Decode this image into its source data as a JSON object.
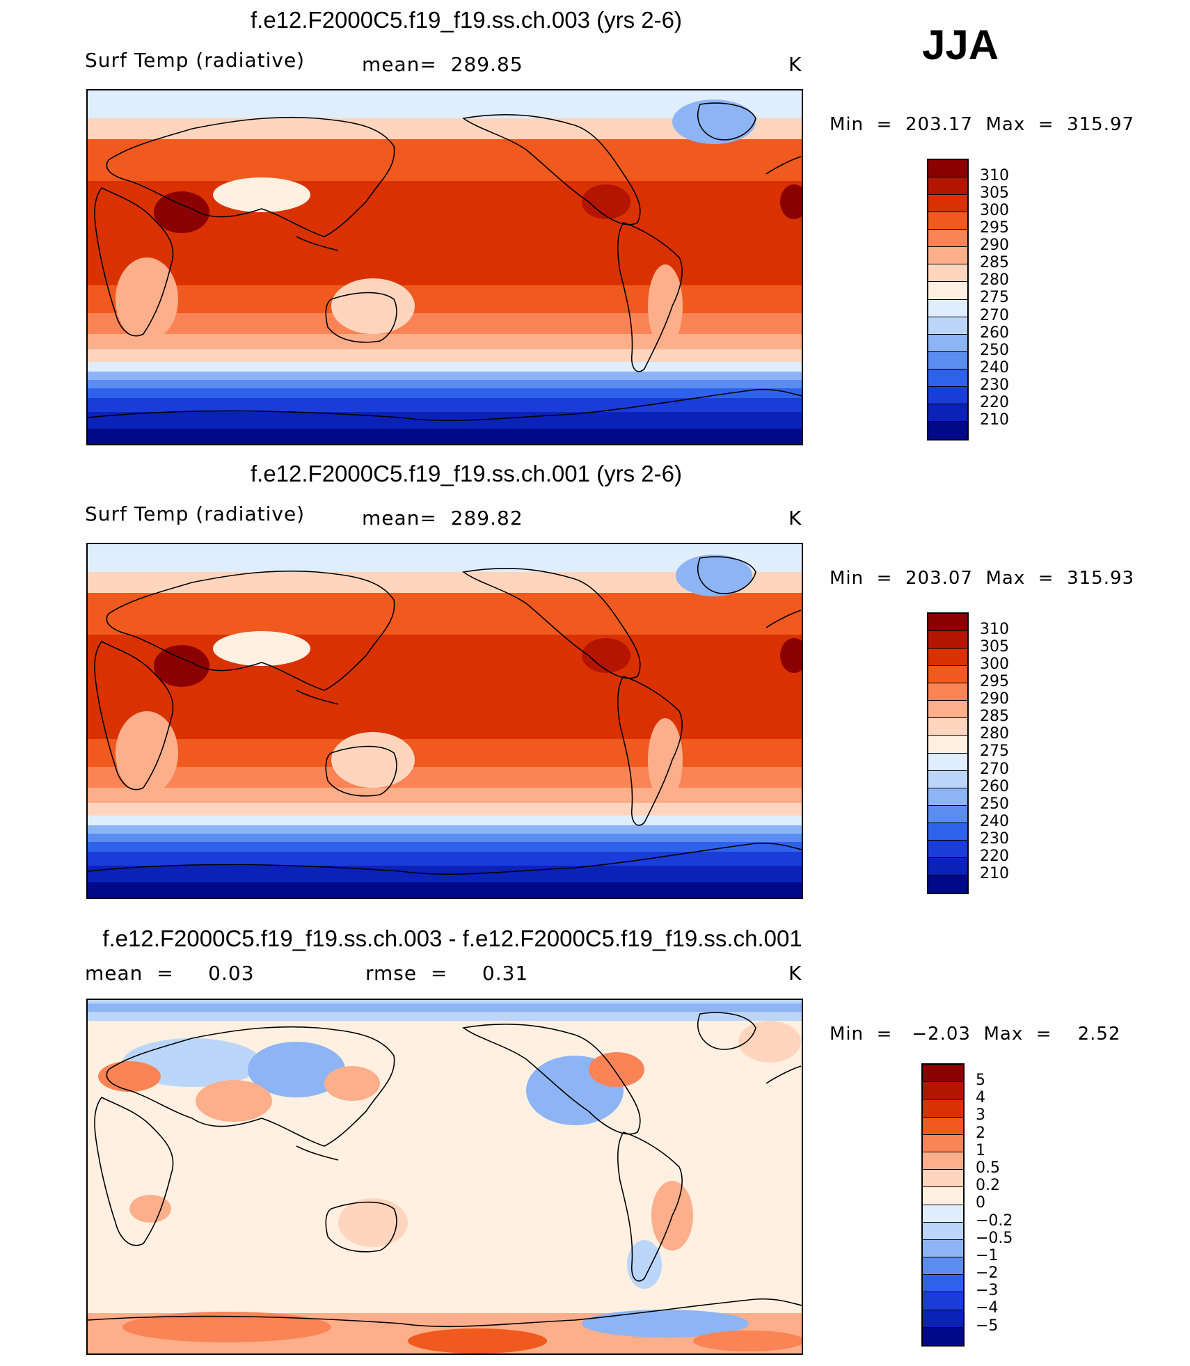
{
  "season": "JJA",
  "panels": [
    {
      "title": "f.e12.F2000C5.f19_f19.ss.ch.003 (yrs 2-6)",
      "variable": "Surf Temp (radiative)",
      "stat1": "mean=  289.85",
      "units": "K",
      "minmax": "Min  =  203.17  Max  =  315.97",
      "colors": [
        "#8b0000",
        "#b31500",
        "#d93200",
        "#f05a1e",
        "#fa8455",
        "#fdae8a",
        "#ffd6bd",
        "#fff0e1",
        "#e0edfc",
        "#bcd6fa",
        "#8db4f4",
        "#5b8cf0",
        "#2e62ea",
        "#1a3cd8",
        "#0b22b8",
        "#000a88"
      ],
      "levels": [
        "310",
        "305",
        "300",
        "295",
        "290",
        "285",
        "280",
        "275",
        "270",
        "260",
        "250",
        "240",
        "230",
        "220",
        "210"
      ]
    },
    {
      "title": "f.e12.F2000C5.f19_f19.ss.ch.001 (yrs 2-6)",
      "variable": "Surf Temp (radiative)",
      "stat1": "mean=  289.82",
      "units": "K",
      "minmax": "Min  =  203.07  Max  =  315.93",
      "colors": [
        "#8b0000",
        "#b31500",
        "#d93200",
        "#f05a1e",
        "#fa8455",
        "#fdae8a",
        "#ffd6bd",
        "#fff0e1",
        "#e0edfc",
        "#bcd6fa",
        "#8db4f4",
        "#5b8cf0",
        "#2e62ea",
        "#1a3cd8",
        "#0b22b8",
        "#000a88"
      ],
      "levels": [
        "310",
        "305",
        "300",
        "295",
        "290",
        "285",
        "280",
        "275",
        "270",
        "260",
        "250",
        "240",
        "230",
        "220",
        "210"
      ]
    },
    {
      "title": "f.e12.F2000C5.f19_f19.ss.ch.003 - f.e12.F2000C5.f19_f19.ss.ch.001",
      "stat1": "mean  =     0.03",
      "stat2": "rmse  =     0.31",
      "units": "K",
      "minmax": "Min  =   −2.03  Max  =    2.52",
      "colors": [
        "#8b0000",
        "#b31500",
        "#d93200",
        "#f05a1e",
        "#fa8455",
        "#fdae8a",
        "#ffd6bd",
        "#fff0e1",
        "#e0edfc",
        "#bcd6fa",
        "#8db4f4",
        "#5b8cf0",
        "#2e62ea",
        "#1a3cd8",
        "#0b22b8",
        "#000a88"
      ],
      "levels": [
        "5",
        "4",
        "3",
        "2",
        "1",
        "0.5",
        "0.2",
        "0",
        "−0.2",
        "−0.5",
        "−1",
        "−2",
        "−3",
        "−4",
        "−5"
      ]
    }
  ]
}
